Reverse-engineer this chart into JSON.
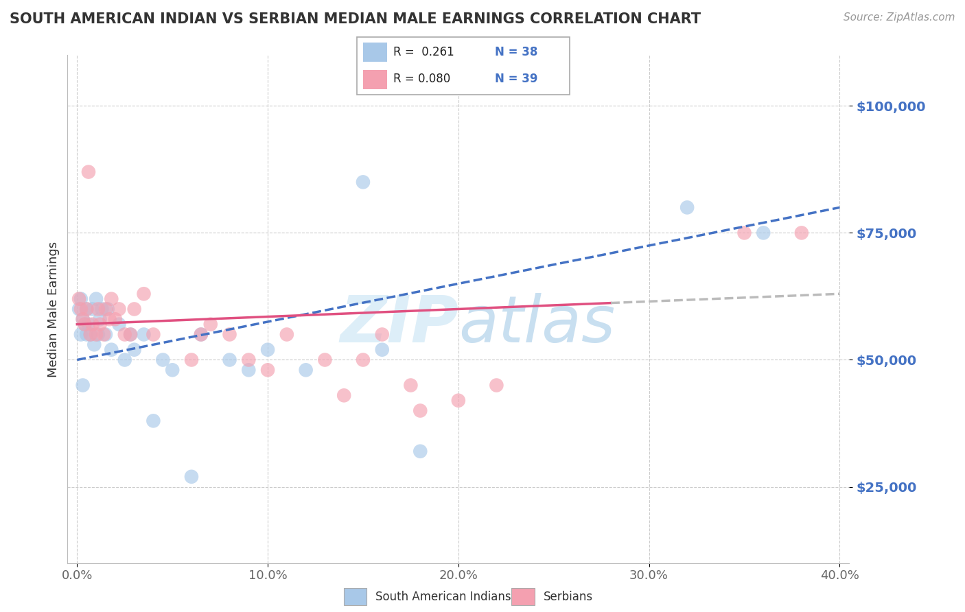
{
  "title": "SOUTH AMERICAN INDIAN VS SERBIAN MEDIAN MALE EARNINGS CORRELATION CHART",
  "source": "Source: ZipAtlas.com",
  "ylabel": "Median Male Earnings",
  "y_ticks": [
    25000,
    50000,
    75000,
    100000
  ],
  "y_tick_labels": [
    "$25,000",
    "$50,000",
    "$75,000",
    "$100,000"
  ],
  "x_min": 0.0,
  "x_max": 0.4,
  "y_min": 10000,
  "y_max": 110000,
  "blue_color": "#a8c8e8",
  "pink_color": "#f4a0b0",
  "blue_line_color": "#4472c4",
  "pink_line_color": "#e05080",
  "tick_color": "#4472c4",
  "watermark_color": "#ddeef8",
  "south_american_x": [
    0.001,
    0.002,
    0.002,
    0.003,
    0.003,
    0.004,
    0.005,
    0.005,
    0.006,
    0.007,
    0.008,
    0.009,
    0.01,
    0.011,
    0.012,
    0.013,
    0.015,
    0.016,
    0.018,
    0.022,
    0.025,
    0.028,
    0.03,
    0.035,
    0.04,
    0.045,
    0.05,
    0.06,
    0.065,
    0.08,
    0.09,
    0.1,
    0.12,
    0.15,
    0.16,
    0.18,
    0.32,
    0.36
  ],
  "south_american_y": [
    60000,
    55000,
    62000,
    58000,
    45000,
    57000,
    60000,
    55000,
    57000,
    55000,
    60000,
    53000,
    62000,
    55000,
    58000,
    60000,
    55000,
    60000,
    52000,
    57000,
    50000,
    55000,
    52000,
    55000,
    38000,
    50000,
    48000,
    27000,
    55000,
    50000,
    48000,
    52000,
    48000,
    85000,
    52000,
    32000,
    80000,
    75000
  ],
  "serbian_x": [
    0.001,
    0.002,
    0.003,
    0.004,
    0.005,
    0.006,
    0.007,
    0.008,
    0.01,
    0.011,
    0.012,
    0.014,
    0.015,
    0.017,
    0.018,
    0.02,
    0.022,
    0.025,
    0.028,
    0.03,
    0.035,
    0.04,
    0.06,
    0.065,
    0.07,
    0.08,
    0.09,
    0.1,
    0.11,
    0.13,
    0.14,
    0.15,
    0.16,
    0.175,
    0.18,
    0.2,
    0.22,
    0.35,
    0.38
  ],
  "serbian_y": [
    62000,
    60000,
    58000,
    57000,
    60000,
    87000,
    55000,
    57000,
    55000,
    60000,
    57000,
    55000,
    60000,
    58000,
    62000,
    58000,
    60000,
    55000,
    55000,
    60000,
    63000,
    55000,
    50000,
    55000,
    57000,
    55000,
    50000,
    48000,
    55000,
    50000,
    43000,
    50000,
    55000,
    45000,
    40000,
    42000,
    45000,
    75000,
    75000
  ]
}
